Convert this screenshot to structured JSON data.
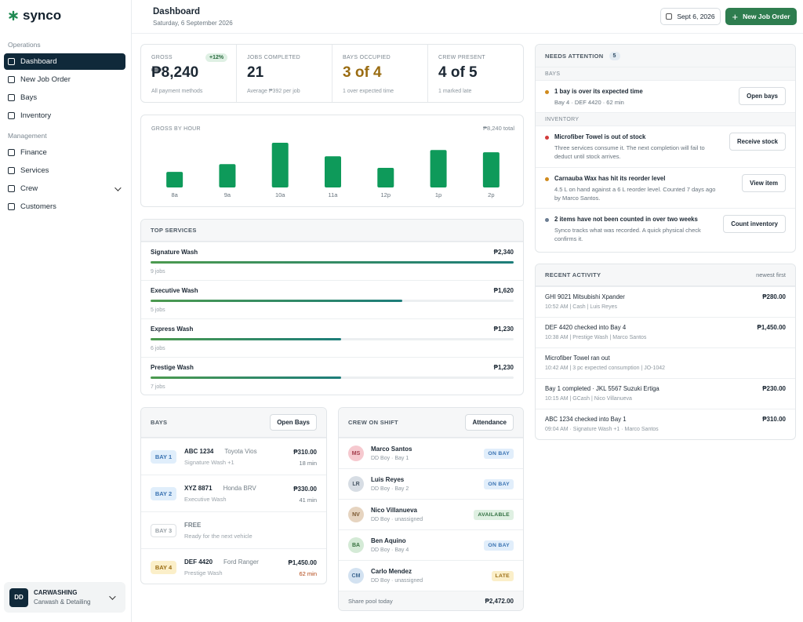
{
  "brand": "synco",
  "sidebar": {
    "sections": [
      {
        "title": "Operations",
        "items": [
          "Dashboard",
          "New Job Order",
          "Bays",
          "Inventory"
        ]
      },
      {
        "title": "Management",
        "items": [
          "Finance",
          "Services",
          "Crew",
          "Customers"
        ]
      }
    ],
    "account": {
      "initials": "DD",
      "name": "CARWASHING",
      "subtitle": "Carwash & Detailing"
    }
  },
  "header": {
    "title": "Dashboard",
    "date": "Saturday, 6 September 2026",
    "date_button": "Sept 6, 2026",
    "action": "New Job Order"
  },
  "kpis": [
    {
      "label": "GROSS",
      "badge": "+12%",
      "value": "₱8,240",
      "note": "All payment methods"
    },
    {
      "label": "JOBS COMPLETED",
      "value": "21",
      "note": "Average ₱392 per job"
    },
    {
      "label": "BAYS OCCUPIED",
      "value": "3 of 4",
      "note": "1 over expected time"
    },
    {
      "label": "CREW PRESENT",
      "value": "4 of 5",
      "note": "1 marked late"
    }
  ],
  "chart_data": {
    "type": "bar",
    "title": "GROSS BY HOUR",
    "subtitle": "₱8,240 total",
    "categories": [
      "8a",
      "9a",
      "10a",
      "11a",
      "12p",
      "1p",
      "2p"
    ],
    "values": [
      620,
      930,
      1780,
      1240,
      780,
      1490,
      1400
    ],
    "color": "#0e9a5a"
  },
  "top_services": {
    "title": "TOP SERVICES",
    "items": [
      {
        "name": "Signature Wash",
        "jobs": "9 jobs",
        "value": 2340,
        "value_label": "₱2,340"
      },
      {
        "name": "Executive Wash",
        "jobs": "5 jobs",
        "value": 1620,
        "value_label": "₱1,620"
      },
      {
        "name": "Express Wash",
        "jobs": "6 jobs",
        "value": 1230,
        "value_label": "₱1,230"
      },
      {
        "name": "Prestige Wash",
        "jobs": "7 jobs",
        "value": 1230,
        "value_label": "₱1,230"
      }
    ]
  },
  "bays": {
    "title": "BAYS",
    "action": "Open Bays",
    "rows": [
      {
        "bay": "BAY 1",
        "plate": "ABC 1234",
        "car": "Toyota Vios",
        "service": "Signature Wash +1",
        "amount": "₱310.00",
        "time": "18 min"
      },
      {
        "bay": "BAY 2",
        "plate": "XYZ 8871",
        "car": "Honda BRV",
        "service": "Executive Wash",
        "amount": "₱330.00",
        "time": "41 min"
      },
      {
        "bay": "BAY 3",
        "plate": "FREE",
        "service": "Ready for the next vehicle"
      },
      {
        "bay": "BAY 4",
        "plate": "DEF 4420",
        "car": "Ford Ranger",
        "service": "Prestige Wash",
        "amount": "₱1,450.00",
        "time": "62 min"
      }
    ]
  },
  "crew": {
    "title": "CREW ON SHIFT",
    "action": "Attendance",
    "rows": [
      {
        "initials": "MS",
        "name": "Marco Santos",
        "detail": "DD Boy · Bay 1",
        "status": "ON BAY"
      },
      {
        "initials": "LR",
        "name": "Luis Reyes",
        "detail": "DD Boy · Bay 2",
        "status": "ON BAY"
      },
      {
        "initials": "NV",
        "name": "Nico Villanueva",
        "detail": "DD Boy · unassigned",
        "status": "AVAILABLE"
      },
      {
        "initials": "BA",
        "name": "Ben Aquino",
        "detail": "DD Boy · Bay 4",
        "status": "ON BAY"
      },
      {
        "initials": "CM",
        "name": "Carlo Mendez",
        "detail": "DD Boy · unassigned",
        "status": "LATE"
      }
    ],
    "footer_label": "Share pool today",
    "footer_value": "₱2,472.00"
  },
  "attention": {
    "title": "NEEDS ATTENTION",
    "count": "5",
    "groups": [
      {
        "title": "BAYS",
        "items": [
          {
            "title": "1 bay is over its expected time",
            "detail": "Bay 4 · DEF 4420 · 62 min",
            "action": "Open bays"
          }
        ]
      },
      {
        "title": "INVENTORY",
        "items": [
          {
            "title": "Microfiber Towel is out of stock",
            "detail": "Three services consume it. The next completion will fail to deduct until stock arrives.",
            "action": "Receive stock"
          },
          {
            "title": "Carnauba Wax has hit its reorder level",
            "detail": "4.5 L on hand against a 6 L reorder level. Counted 7 days ago by Marco Santos.",
            "action": "View item"
          },
          {
            "title": "2 items have not been counted in over two weeks",
            "detail": "Synco tracks what was recorded. A quick physical check confirms it.",
            "action": "Count inventory"
          }
        ]
      }
    ]
  },
  "activity": {
    "title": "RECENT ACTIVITY",
    "note": "newest first",
    "items": [
      {
        "title": "GHI 9021 Mitsubishi Xpander",
        "detail": "10:52 AM | Cash | Luis Reyes",
        "amount": "₱280.00"
      },
      {
        "title": "DEF 4420 checked into Bay 4",
        "detail": "10:38 AM | Prestige Wash | Marco Santos",
        "amount": "₱1,450.00"
      },
      {
        "title": "Microfiber Towel ran out",
        "detail": "10:42 AM | 3 pc expected consumption | JO-1042"
      },
      {
        "title": "Bay 1 completed · JKL 5567 Suzuki Ertiga",
        "detail": "10:15 AM | GCash | Nico Villanueva",
        "amount": "₱230.00"
      },
      {
        "title": "ABC 1234 checked into Bay 1",
        "detail": "09:04 AM · Signature Wash +1 · Marco Santos",
        "amount": "₱310.00"
      }
    ]
  }
}
